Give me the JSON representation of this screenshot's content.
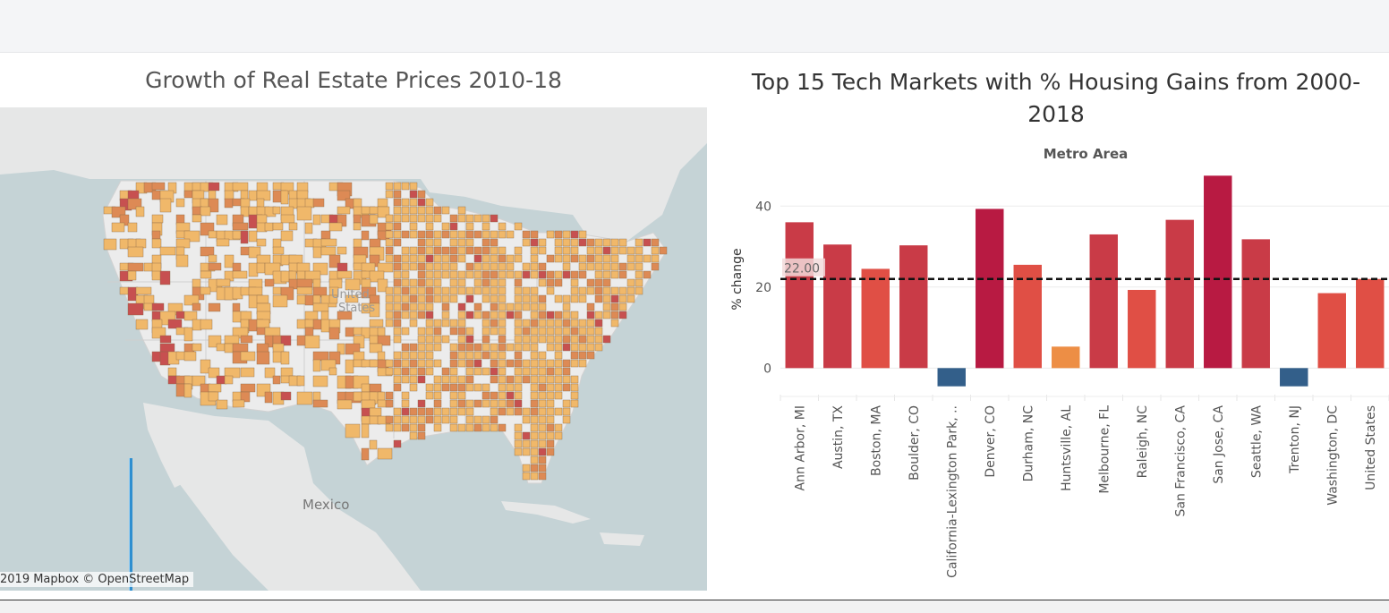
{
  "map": {
    "title": "Growth of Real Estate Prices 2010-18",
    "labels": {
      "country_us": "United",
      "country_us_2": "States",
      "country_mx": "Mexico"
    },
    "attribution": "2019 Mapbox  © OpenStreetMap",
    "colors": {
      "water": "#c5d3d6",
      "land": "#e9eaea",
      "low": "#f0b86a",
      "mid": "#dd8a55",
      "high": "#c75050"
    }
  },
  "chart_data": {
    "type": "bar",
    "title": "Top 15 Tech Markets with % Housing Gains from 2000-2018",
    "column_header": "Metro Area",
    "ylabel": "% change",
    "xlabel": "",
    "ylim": [
      -7,
      50
    ],
    "yticks": [
      0,
      20,
      40
    ],
    "categories": [
      "Ann Arbor, MI",
      "Austin, TX",
      "Boston, MA",
      "Boulder, CO",
      "California-Lexington Park, ..",
      "Denver, CO",
      "Durham, NC",
      "Huntsville, AL",
      "Melbourne, FL",
      "Raleigh, NC",
      "San Francisco, CA",
      "San Jose, CA",
      "Seattle, WA",
      "Trenton, NJ",
      "Washington, DC",
      "United States"
    ],
    "values": [
      36,
      30.5,
      24.5,
      30.3,
      -4.5,
      39.3,
      25.5,
      5.3,
      33,
      19.3,
      36.6,
      47.5,
      31.8,
      -4.5,
      18.5,
      22
    ],
    "reference_line": {
      "value": 22,
      "label": "22.00"
    },
    "grid": true,
    "colors": {
      "negative": "#335f8a",
      "low": "#ed8e45",
      "mid": "#e04f45",
      "high": "#c93b47",
      "top": "#b81a42"
    }
  }
}
